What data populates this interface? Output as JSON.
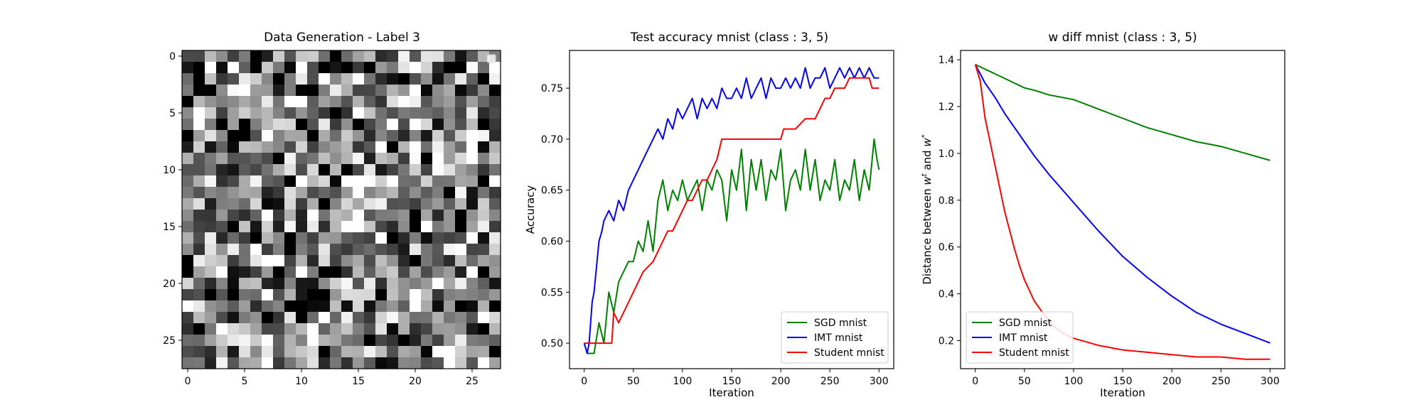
{
  "chart_data": [
    {
      "type": "heatmap",
      "title": "Data Generation - Label 3",
      "grid_size": [
        28,
        28
      ],
      "xlim": [
        -0.5,
        27.5
      ],
      "ylim": [
        27.5,
        -0.5
      ],
      "xticks": [
        0,
        5,
        10,
        15,
        20,
        25
      ],
      "yticks": [
        0,
        5,
        10,
        15,
        20,
        25
      ],
      "colormap": "gray",
      "legend": "top-right (empty)",
      "seed": 3
    },
    {
      "type": "line",
      "title": "Test accuracy mnist (class : 3, 5)",
      "xlabel": "Iteration",
      "ylabel": "Accuracy",
      "xlim": [
        -15,
        315
      ],
      "ylim": [
        0.475,
        0.787
      ],
      "xticks": [
        0,
        50,
        100,
        150,
        200,
        250,
        300
      ],
      "yticks": [
        0.5,
        0.55,
        0.6,
        0.65,
        0.7,
        0.75
      ],
      "legend_position": "lower-right",
      "series": [
        {
          "name": "SGD mnist",
          "color": "#008000",
          "x": [
            0,
            3,
            6,
            10,
            15,
            20,
            25,
            30,
            35,
            40,
            45,
            50,
            55,
            60,
            65,
            70,
            75,
            80,
            85,
            90,
            95,
            100,
            105,
            110,
            115,
            120,
            125,
            130,
            135,
            140,
            145,
            150,
            155,
            160,
            165,
            170,
            175,
            180,
            185,
            190,
            195,
            200,
            205,
            210,
            215,
            220,
            225,
            230,
            235,
            240,
            245,
            250,
            255,
            260,
            265,
            270,
            275,
            280,
            285,
            290,
            295,
            298,
            300
          ],
          "y": [
            0.5,
            0.49,
            0.49,
            0.49,
            0.52,
            0.5,
            0.55,
            0.53,
            0.56,
            0.57,
            0.58,
            0.58,
            0.6,
            0.59,
            0.62,
            0.59,
            0.64,
            0.66,
            0.63,
            0.65,
            0.64,
            0.66,
            0.64,
            0.65,
            0.66,
            0.63,
            0.66,
            0.65,
            0.67,
            0.66,
            0.62,
            0.67,
            0.65,
            0.69,
            0.63,
            0.68,
            0.65,
            0.68,
            0.64,
            0.67,
            0.66,
            0.69,
            0.63,
            0.66,
            0.67,
            0.65,
            0.69,
            0.65,
            0.68,
            0.64,
            0.66,
            0.65,
            0.68,
            0.64,
            0.66,
            0.65,
            0.68,
            0.64,
            0.67,
            0.65,
            0.7,
            0.68,
            0.67
          ]
        },
        {
          "name": "IMT mnist",
          "color": "#0000ff",
          "x": [
            0,
            3,
            5,
            8,
            10,
            13,
            15,
            18,
            20,
            25,
            30,
            35,
            40,
            45,
            50,
            55,
            60,
            65,
            70,
            75,
            80,
            85,
            90,
            95,
            100,
            105,
            110,
            115,
            120,
            125,
            130,
            135,
            140,
            145,
            150,
            155,
            160,
            165,
            170,
            175,
            180,
            185,
            190,
            195,
            200,
            205,
            210,
            215,
            220,
            225,
            230,
            235,
            240,
            245,
            250,
            255,
            260,
            265,
            270,
            275,
            280,
            285,
            290,
            295,
            300
          ],
          "y": [
            0.5,
            0.49,
            0.5,
            0.54,
            0.55,
            0.58,
            0.6,
            0.61,
            0.62,
            0.63,
            0.62,
            0.64,
            0.63,
            0.65,
            0.66,
            0.67,
            0.68,
            0.69,
            0.7,
            0.71,
            0.7,
            0.72,
            0.71,
            0.73,
            0.72,
            0.73,
            0.74,
            0.72,
            0.74,
            0.73,
            0.74,
            0.73,
            0.75,
            0.74,
            0.74,
            0.75,
            0.74,
            0.76,
            0.74,
            0.75,
            0.76,
            0.74,
            0.76,
            0.75,
            0.75,
            0.76,
            0.75,
            0.76,
            0.75,
            0.77,
            0.75,
            0.76,
            0.76,
            0.77,
            0.75,
            0.76,
            0.77,
            0.76,
            0.77,
            0.76,
            0.77,
            0.76,
            0.77,
            0.76,
            0.76
          ]
        },
        {
          "name": "Student mnist",
          "color": "#ff0000",
          "x": [
            0,
            20,
            28,
            30,
            35,
            40,
            50,
            55,
            60,
            70,
            75,
            80,
            85,
            90,
            95,
            100,
            105,
            110,
            115,
            120,
            125,
            130,
            135,
            140,
            145,
            150,
            160,
            170,
            180,
            190,
            200,
            203,
            208,
            215,
            225,
            235,
            240,
            245,
            250,
            255,
            260,
            265,
            270,
            275,
            280,
            285,
            290,
            293,
            300
          ],
          "y": [
            0.5,
            0.5,
            0.5,
            0.53,
            0.52,
            0.53,
            0.55,
            0.56,
            0.57,
            0.58,
            0.59,
            0.6,
            0.61,
            0.61,
            0.62,
            0.63,
            0.64,
            0.64,
            0.65,
            0.66,
            0.66,
            0.67,
            0.68,
            0.7,
            0.7,
            0.7,
            0.7,
            0.7,
            0.7,
            0.7,
            0.7,
            0.71,
            0.71,
            0.71,
            0.72,
            0.72,
            0.73,
            0.74,
            0.74,
            0.75,
            0.75,
            0.75,
            0.76,
            0.76,
            0.76,
            0.76,
            0.76,
            0.75,
            0.75
          ]
        }
      ]
    },
    {
      "type": "line",
      "title": "w diff mnist (class : 3, 5)",
      "xlabel": "Iteration",
      "ylabel": "Distance between w^t and w^*",
      "xlim": [
        -15,
        315
      ],
      "ylim": [
        0.08,
        1.44
      ],
      "xticks": [
        0,
        50,
        100,
        150,
        200,
        250,
        300
      ],
      "yticks": [
        0.2,
        0.4,
        0.6,
        0.8,
        1.0,
        1.2,
        1.4
      ],
      "legend_position": "lower-left",
      "series": [
        {
          "name": "SGD mnist",
          "color": "#008000",
          "x": [
            0,
            5,
            10,
            20,
            30,
            40,
            50,
            60,
            75,
            100,
            125,
            150,
            175,
            200,
            225,
            250,
            275,
            300
          ],
          "y": [
            1.38,
            1.37,
            1.36,
            1.34,
            1.32,
            1.3,
            1.28,
            1.27,
            1.25,
            1.23,
            1.19,
            1.15,
            1.11,
            1.08,
            1.05,
            1.03,
            1.0,
            0.97
          ]
        },
        {
          "name": "IMT mnist",
          "color": "#0000ff",
          "x": [
            0,
            5,
            10,
            20,
            30,
            40,
            50,
            60,
            75,
            100,
            125,
            150,
            175,
            200,
            225,
            250,
            275,
            300
          ],
          "y": [
            1.38,
            1.34,
            1.3,
            1.24,
            1.17,
            1.11,
            1.05,
            0.99,
            0.91,
            0.79,
            0.67,
            0.56,
            0.47,
            0.39,
            0.32,
            0.27,
            0.23,
            0.19
          ]
        },
        {
          "name": "Student mnist",
          "color": "#ff0000",
          "x": [
            0,
            5,
            10,
            15,
            20,
            25,
            30,
            35,
            40,
            45,
            50,
            60,
            70,
            80,
            90,
            100,
            125,
            150,
            175,
            200,
            225,
            250,
            275,
            300
          ],
          "y": [
            1.38,
            1.31,
            1.15,
            1.05,
            0.95,
            0.85,
            0.75,
            0.67,
            0.59,
            0.52,
            0.46,
            0.37,
            0.31,
            0.26,
            0.23,
            0.21,
            0.18,
            0.16,
            0.15,
            0.14,
            0.13,
            0.13,
            0.12,
            0.12
          ]
        }
      ]
    }
  ]
}
